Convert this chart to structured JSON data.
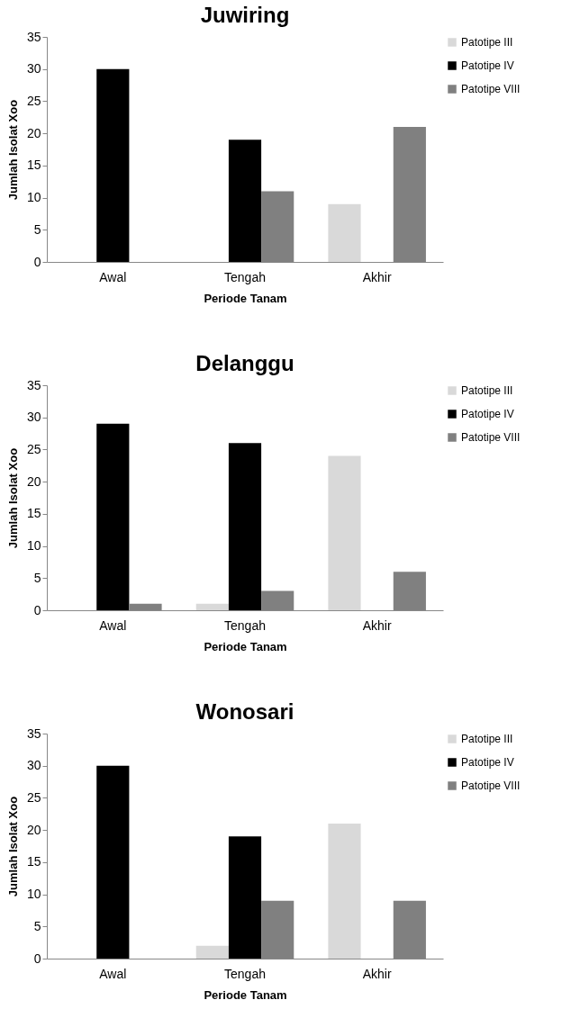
{
  "chart_data": [
    {
      "type": "bar",
      "title": "Juwiring",
      "xlabel": "Periode Tanam",
      "ylabel": "Jumlah Isolat Xoo",
      "categories": [
        "Awal",
        "Tengah",
        "Akhir"
      ],
      "ylim": [
        0,
        35
      ],
      "yticks": [
        0,
        5,
        10,
        15,
        20,
        25,
        30,
        35
      ],
      "grid": false,
      "legend": "right",
      "series": [
        {
          "name": "Patotipe III",
          "color": "#d9d9d9",
          "values": [
            0,
            0,
            9
          ]
        },
        {
          "name": "Patotipe IV",
          "color": "#000000",
          "values": [
            30,
            19,
            0
          ]
        },
        {
          "name": "Patotipe VIII",
          "color": "#808080",
          "values": [
            0,
            11,
            21
          ]
        }
      ]
    },
    {
      "type": "bar",
      "title": "Delanggu",
      "xlabel": "Periode Tanam",
      "ylabel": "Jumlah Isolat Xoo",
      "categories": [
        "Awal",
        "Tengah",
        "Akhir"
      ],
      "ylim": [
        0,
        35
      ],
      "yticks": [
        0,
        5,
        10,
        15,
        20,
        25,
        30,
        35
      ],
      "grid": false,
      "legend": "right",
      "series": [
        {
          "name": "Patotipe III",
          "color": "#d9d9d9",
          "values": [
            0,
            1,
            24
          ]
        },
        {
          "name": "Patotipe IV",
          "color": "#000000",
          "values": [
            29,
            26,
            0
          ]
        },
        {
          "name": "Patotipe VIII",
          "color": "#808080",
          "values": [
            1,
            3,
            6
          ]
        }
      ]
    },
    {
      "type": "bar",
      "title": "Wonosari",
      "xlabel": "Periode Tanam",
      "ylabel": "Jumlah Isolat Xoo",
      "categories": [
        "Awal",
        "Tengah",
        "Akhir"
      ],
      "ylim": [
        0,
        35
      ],
      "yticks": [
        0,
        5,
        10,
        15,
        20,
        25,
        30,
        35
      ],
      "grid": false,
      "legend": "right",
      "series": [
        {
          "name": "Patotipe III",
          "color": "#d9d9d9",
          "values": [
            0,
            2,
            21
          ]
        },
        {
          "name": "Patotipe IV",
          "color": "#000000",
          "values": [
            30,
            19,
            0
          ]
        },
        {
          "name": "Patotipe VIII",
          "color": "#808080",
          "values": [
            0,
            9,
            9
          ]
        }
      ]
    }
  ]
}
